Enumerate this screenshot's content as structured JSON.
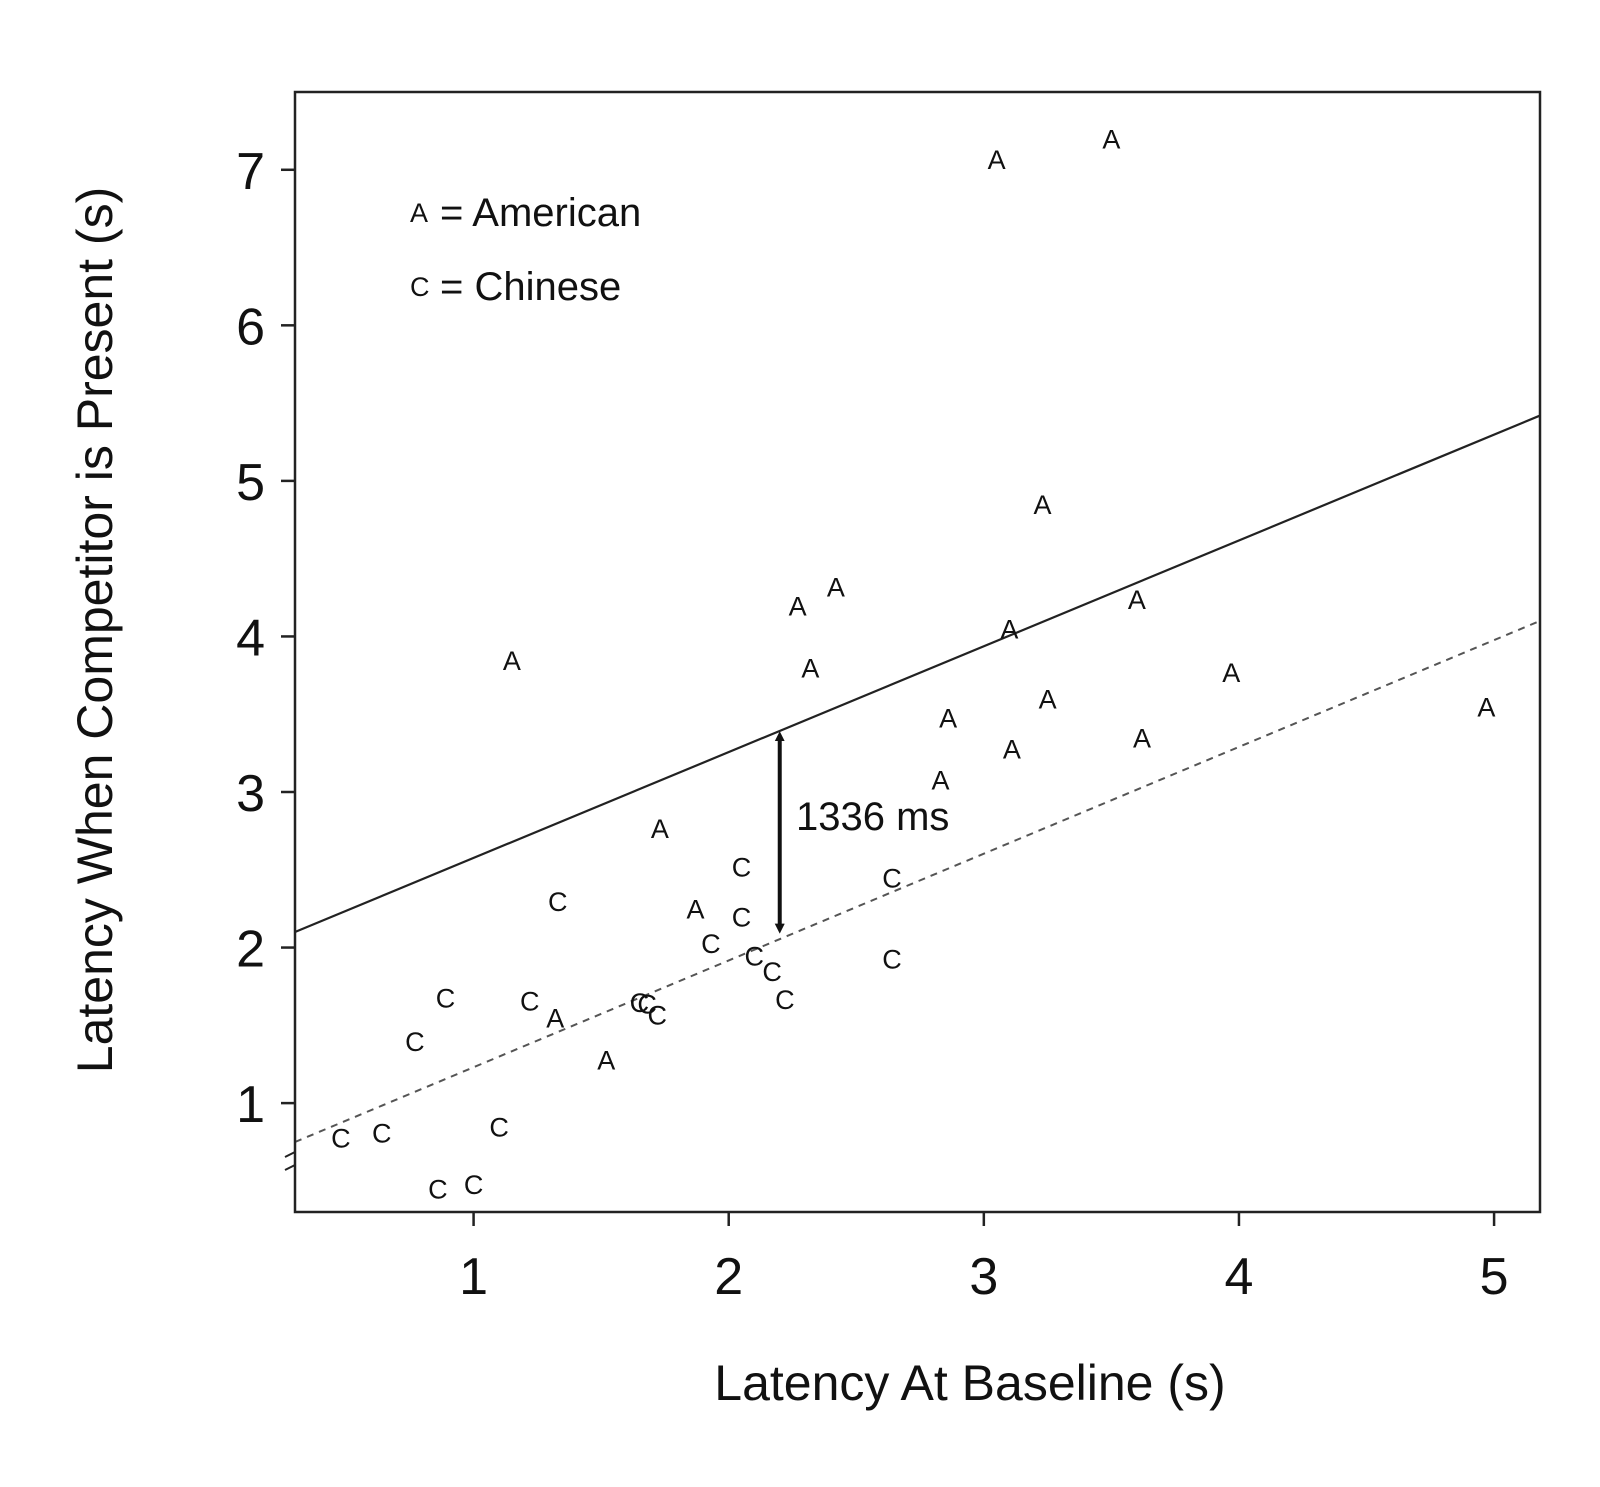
{
  "chart_data": {
    "type": "scatter",
    "title": "",
    "xlabel": "Latency At Baseline (s)",
    "ylabel": "Latency When Competitor is Present  (s)",
    "xlim": [
      0.3,
      5.18
    ],
    "ylim": [
      0.3,
      7.5
    ],
    "x_ticks": [
      "1",
      "2",
      "3",
      "4",
      "5"
    ],
    "y_ticks": [
      "1",
      "2",
      "3",
      "4",
      "5",
      "6",
      "7"
    ],
    "x_tick_values": [
      1,
      2,
      3,
      4,
      5
    ],
    "y_tick_values": [
      1,
      2,
      3,
      4,
      5,
      6,
      7
    ],
    "grid": false,
    "legend": {
      "placement": "top-left",
      "entries": [
        {
          "symbol": "A",
          "label": "= American"
        },
        {
          "symbol": "C",
          "label": "= Chinese"
        }
      ]
    },
    "series": [
      {
        "symbol": "A",
        "points": [
          [
            3.05,
            7.07
          ],
          [
            3.5,
            7.2
          ],
          [
            3.23,
            4.85
          ],
          [
            2.42,
            4.32
          ],
          [
            2.27,
            4.2
          ],
          [
            3.6,
            4.24
          ],
          [
            3.1,
            4.05
          ],
          [
            1.15,
            3.85
          ],
          [
            2.32,
            3.8
          ],
          [
            3.97,
            3.77
          ],
          [
            3.25,
            3.6
          ],
          [
            2.86,
            3.48
          ],
          [
            4.97,
            3.55
          ],
          [
            3.62,
            3.35
          ],
          [
            3.11,
            3.28
          ],
          [
            2.83,
            3.08
          ],
          [
            1.73,
            2.77
          ],
          [
            1.87,
            2.25
          ],
          [
            1.32,
            1.55
          ],
          [
            1.52,
            1.28
          ]
        ]
      },
      {
        "symbol": "C",
        "points": [
          [
            2.05,
            2.52
          ],
          [
            1.33,
            2.3
          ],
          [
            2.64,
            2.45
          ],
          [
            2.05,
            2.2
          ],
          [
            1.93,
            2.03
          ],
          [
            2.1,
            1.95
          ],
          [
            2.64,
            1.93
          ],
          [
            2.17,
            1.85
          ],
          [
            2.22,
            1.67
          ],
          [
            0.89,
            1.68
          ],
          [
            1.22,
            1.66
          ],
          [
            1.65,
            1.65
          ],
          [
            1.68,
            1.64
          ],
          [
            1.72,
            1.57
          ],
          [
            0.77,
            1.4
          ],
          [
            1.1,
            0.85
          ],
          [
            0.48,
            0.78
          ],
          [
            0.64,
            0.81
          ],
          [
            0.86,
            0.45
          ],
          [
            1.0,
            0.48
          ]
        ]
      }
    ],
    "lines": [
      {
        "style": "solid",
        "x": [
          0.3,
          5.18
        ],
        "y": [
          2.1,
          5.42
        ]
      },
      {
        "style": "dashed",
        "x": [
          0.3,
          5.18
        ],
        "y": [
          0.75,
          4.1
        ]
      }
    ],
    "annotations": [
      {
        "text": "1336 ms",
        "x": 2.2,
        "y_from": 2.07,
        "y_to": 3.41
      }
    ]
  }
}
